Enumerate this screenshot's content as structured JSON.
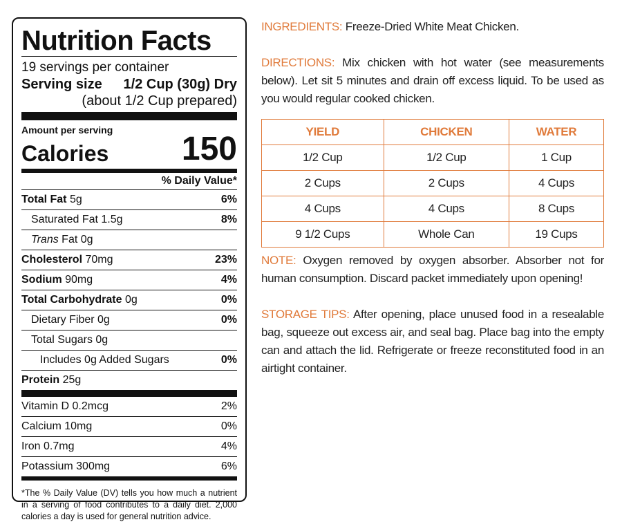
{
  "nutrition": {
    "title": "Nutrition Facts",
    "servings": "19 servings per container",
    "serving_size_label": "Serving size",
    "serving_size_value": "1/2 Cup (30g) Dry",
    "prepared": "(about 1/2 Cup prepared)",
    "amount_per_serving": "Amount per serving",
    "calories_label": "Calories",
    "calories_value": "150",
    "daily_value_header": "% Daily Value*",
    "rows": [
      {
        "name": "Total Fat",
        "amount": "5g",
        "dv": "6%"
      },
      {
        "name": "Saturated Fat",
        "amount": "1.5g",
        "dv": "8%"
      },
      {
        "name": "Trans",
        "amount": "Fat 0g",
        "dv": ""
      },
      {
        "name": "Cholesterol",
        "amount": "70mg",
        "dv": "23%"
      },
      {
        "name": "Sodium",
        "amount": "90mg",
        "dv": "4%"
      },
      {
        "name": "Total Carbohydrate",
        "amount": "0g",
        "dv": "0%"
      },
      {
        "name": "Dietary Fiber",
        "amount": "0g",
        "dv": "0%"
      },
      {
        "name": "Total Sugars",
        "amount": "0g",
        "dv": ""
      },
      {
        "name": "Includes 0g Added Sugars",
        "amount": "",
        "dv": "0%"
      },
      {
        "name": "Protein",
        "amount": "25g",
        "dv": ""
      }
    ],
    "vitamins": [
      {
        "name": "Vitamin D",
        "amount": "0.2mcg",
        "dv": "2%"
      },
      {
        "name": "Calcium",
        "amount": "10mg",
        "dv": "0%"
      },
      {
        "name": "Iron",
        "amount": "0.7mg",
        "dv": "4%"
      },
      {
        "name": "Potassium",
        "amount": "300mg",
        "dv": "6%"
      }
    ],
    "footnote": "*The % Daily Value (DV) tells you how much a nutrient in a serving of food contributes to a daily diet. 2,000 calories a day is used for general nutrition advice."
  },
  "ingredients": {
    "label": "INGREDIENTS:",
    "text": "Freeze-Dried White Meat Chicken."
  },
  "directions": {
    "label": "DIRECTIONS:",
    "text": "Mix chicken with hot water (see measurements below). Let sit 5 minutes and drain off excess liquid. To be used as you would regular cooked chicken."
  },
  "table": {
    "headers": [
      "YIELD",
      "CHICKEN",
      "WATER"
    ],
    "rows": [
      [
        "1/2 Cup",
        "1/2 Cup",
        "1 Cup"
      ],
      [
        "2 Cups",
        "2 Cups",
        "4 Cups"
      ],
      [
        "4 Cups",
        "4 Cups",
        "8 Cups"
      ],
      [
        "9 1/2 Cups",
        "Whole Can",
        "19 Cups"
      ]
    ]
  },
  "note": {
    "label": "NOTE:",
    "text": "Oxygen removed by oxygen absorber. Absorber not for human consumption. Discard packet immediately upon opening!"
  },
  "storage": {
    "label": "STORAGE TIPS:",
    "text": "After opening, place unused food in a resealable bag, squeeze out excess air, and seal bag. Place bag into the empty can and attach the lid. Refrigerate or freeze reconstituted food in an airtight container."
  },
  "colors": {
    "accent": "#e07a3a",
    "text": "#222222",
    "panel_border": "#111111"
  }
}
